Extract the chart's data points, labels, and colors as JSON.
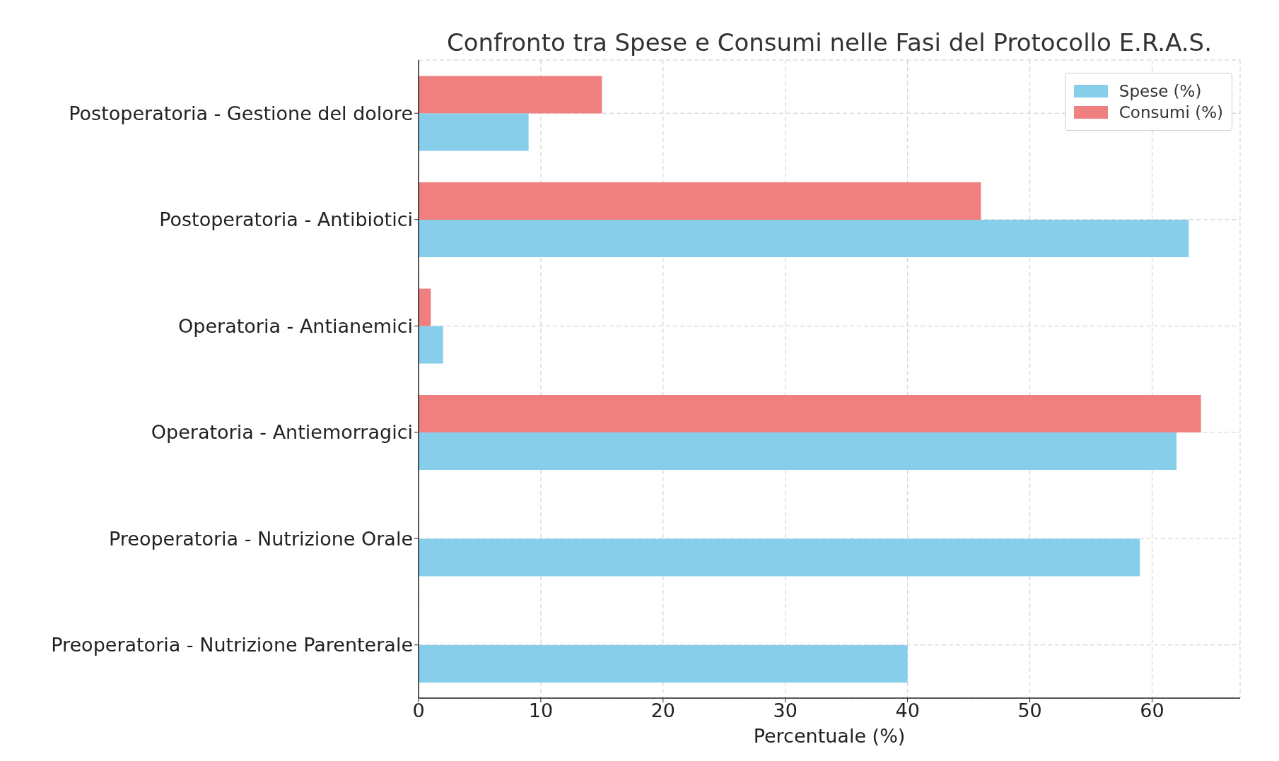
{
  "chart_data": {
    "type": "bar",
    "orientation": "horizontal",
    "title": "Confronto tra Spese e Consumi nelle Fasi del Protocollo E.R.A.S.",
    "xlabel": "Percentuale (%)",
    "categories": [
      "Postoperatoria - Gestione del dolore",
      "Postoperatoria - Antibiotici",
      "Operatoria - Antianemici",
      "Operatoria - Antiemorragici",
      "Preoperatoria - Nutrizione Orale",
      "Preoperatoria - Nutrizione Parenterale"
    ],
    "series": [
      {
        "name": "Spese (%)",
        "color": "#87ceeb",
        "values": [
          9,
          63,
          2,
          62,
          59,
          40
        ]
      },
      {
        "name": "Consumi (%)",
        "color": "#f08080",
        "values": [
          15,
          46,
          1,
          64,
          0,
          0
        ]
      }
    ],
    "xlim": [
      0,
      67.2
    ],
    "xticks": [
      0,
      10,
      20,
      30,
      40,
      50,
      60
    ],
    "grid": true,
    "legend": "top right"
  }
}
